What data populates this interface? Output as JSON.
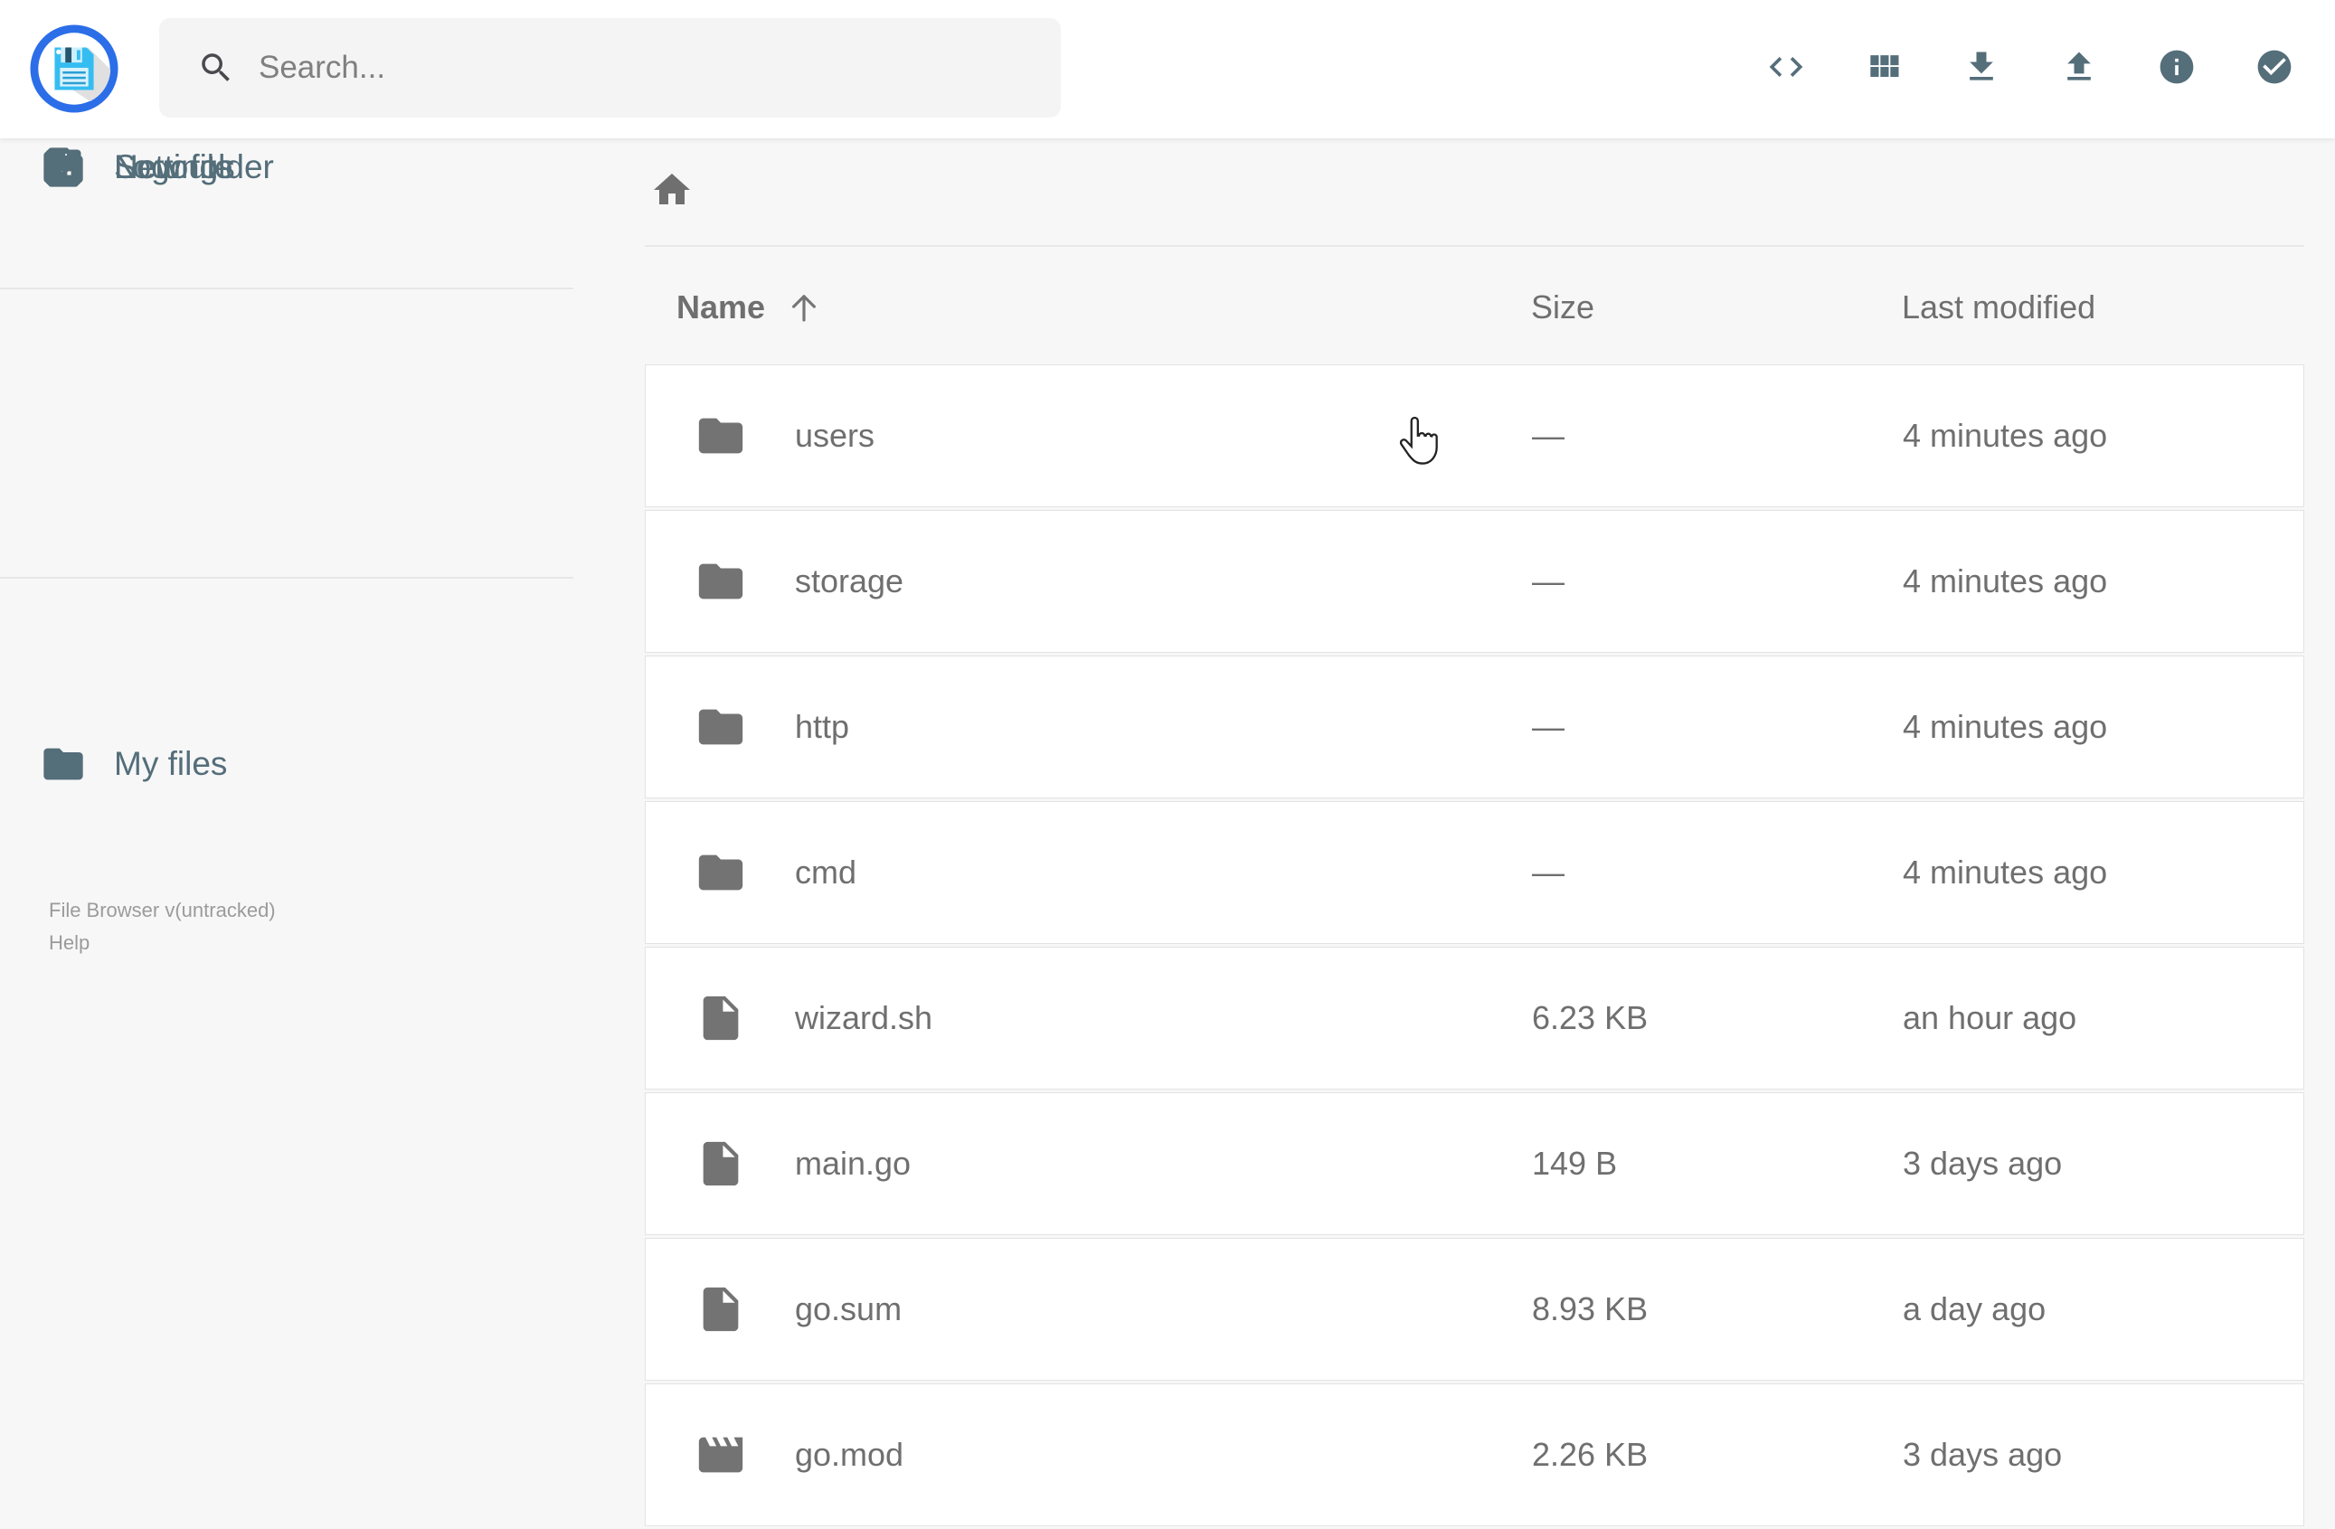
{
  "colors": {
    "accent": "#546E7A",
    "logo_blue": "#2b6ee8",
    "logo_light_blue": "#35bdf1",
    "header_bg": "#ffffff",
    "page_bg": "#f7f7f7",
    "row_text": "#6f6f6f"
  },
  "header": {
    "logo_icon": "filebrowser-logo",
    "search_placeholder": "Search...",
    "actions": [
      {
        "icon": "code-icon"
      },
      {
        "icon": "grid-view-icon"
      },
      {
        "icon": "download-icon"
      },
      {
        "icon": "upload-icon"
      },
      {
        "icon": "info-icon"
      },
      {
        "icon": "select-multiple-icon"
      }
    ]
  },
  "sidebar": {
    "items": [
      {
        "label": "My files",
        "icon": "folder-icon"
      },
      {
        "label": "New folder",
        "icon": "new-folder-icon"
      },
      {
        "label": "New file",
        "icon": "new-file-icon"
      },
      {
        "label": "Settings",
        "icon": "settings-icon"
      },
      {
        "label": "Logout",
        "icon": "logout-icon"
      }
    ],
    "footer": {
      "version": "File Browser v(untracked)",
      "help": "Help"
    }
  },
  "main": {
    "breadcrumb_icon": "home-icon",
    "listing": {
      "columns": {
        "name": "Name",
        "size": "Size",
        "modified": "Last modified"
      },
      "sort": {
        "column": "Name",
        "direction": "ascending"
      },
      "items": [
        {
          "name": "users",
          "type": "folder",
          "size": "—",
          "modified": "4 minutes ago"
        },
        {
          "name": "storage",
          "type": "folder",
          "size": "—",
          "modified": "4 minutes ago"
        },
        {
          "name": "http",
          "type": "folder",
          "size": "—",
          "modified": "4 minutes ago"
        },
        {
          "name": "cmd",
          "type": "folder",
          "size": "—",
          "modified": "4 minutes ago"
        },
        {
          "name": "wizard.sh",
          "type": "file",
          "size": "6.23 KB",
          "modified": "an hour ago"
        },
        {
          "name": "main.go",
          "type": "file",
          "size": "149 B",
          "modified": "3 days ago"
        },
        {
          "name": "go.sum",
          "type": "file",
          "size": "8.93 KB",
          "modified": "a day ago"
        },
        {
          "name": "go.mod",
          "type": "movie",
          "size": "2.26 KB",
          "modified": "3 days ago"
        }
      ]
    }
  }
}
